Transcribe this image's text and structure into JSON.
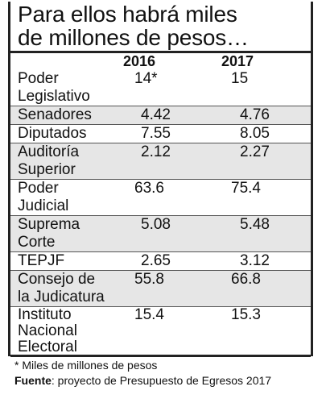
{
  "title_line1": "Para ellos habrá miles",
  "title_line2": "de millones de pesos…",
  "year_2016": "2016",
  "year_2017": "2017",
  "rows": [
    {
      "label": "Poder\nLegislativo",
      "v2016": "14*",
      "v2017": "15"
    },
    {
      "label": "Senadores",
      "v2016": "4.42",
      "v2017": "4.76"
    },
    {
      "label": "Diputados",
      "v2016": "7.55",
      "v2017": "8.05"
    },
    {
      "label": "Auditoría\nSuperior",
      "v2016": "2.12",
      "v2017": "2.27"
    },
    {
      "label": "Poder\nJudicial",
      "v2016": "63.6",
      "v2017": "75.4"
    },
    {
      "label": "Suprema\nCorte",
      "v2016": "5.08",
      "v2017": "5.48"
    },
    {
      "label": "TEPJF",
      "v2016": "2.65",
      "v2017": "3.12"
    },
    {
      "label": "Consejo de\nla Judicatura",
      "v2016": "55.8",
      "v2017": "66.8"
    },
    {
      "label": "Instituto\nNacional\nElectoral",
      "v2016": "15.4",
      "v2017": "15.3"
    }
  ],
  "footnote": "* Miles de millones de pesos",
  "source_label": "Fuente",
  "source_text": ": proyecto de Presupuesto de Egresos 2017"
}
